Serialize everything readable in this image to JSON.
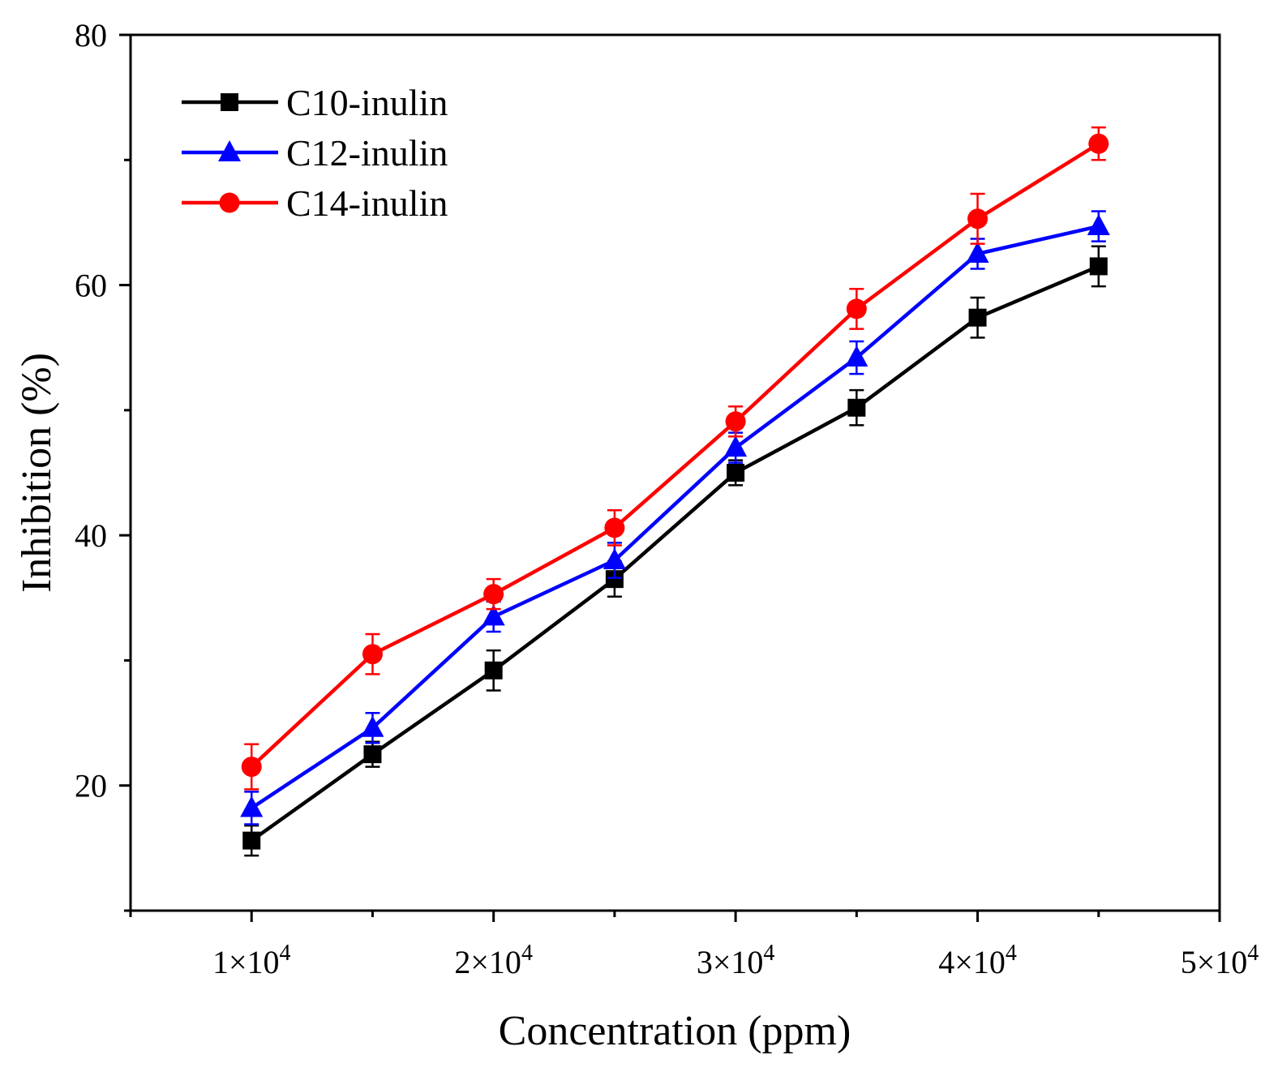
{
  "chart_data": {
    "type": "line",
    "title": "",
    "xlabel": "Concentration (ppm)",
    "ylabel": "Inhibition (%)",
    "xlim": [
      5000,
      50000
    ],
    "ylim": [
      10,
      80
    ],
    "x_ticks": [
      {
        "value": 10000,
        "mantissa": "1",
        "exp": "4"
      },
      {
        "value": 20000,
        "mantissa": "2",
        "exp": "4"
      },
      {
        "value": 30000,
        "mantissa": "3",
        "exp": "4"
      },
      {
        "value": 40000,
        "mantissa": "4",
        "exp": "4"
      },
      {
        "value": 50000,
        "mantissa": "5",
        "exp": "4"
      }
    ],
    "x_minor_ticks": [
      5000,
      15000,
      25000,
      35000,
      45000
    ],
    "y_ticks": [
      {
        "value": 20,
        "label": "20"
      },
      {
        "value": 40,
        "label": "40"
      },
      {
        "value": 60,
        "label": "60"
      },
      {
        "value": 80,
        "label": "80"
      }
    ],
    "y_minor_ticks": [
      10,
      30,
      50,
      70
    ],
    "x": [
      10000,
      15000,
      20000,
      25000,
      30000,
      35000,
      40000,
      45000
    ],
    "legend_position": "top-left",
    "series": [
      {
        "name": "C10-inulin",
        "color": "#000000",
        "marker": "square",
        "values": [
          15.6,
          22.5,
          29.2,
          36.5,
          45.0,
          50.2,
          57.4,
          61.5
        ],
        "errors": [
          1.2,
          1.0,
          1.6,
          1.4,
          1.0,
          1.4,
          1.6,
          1.6
        ]
      },
      {
        "name": "C12-inulin",
        "color": "#0000ff",
        "marker": "triangle",
        "values": [
          18.2,
          24.6,
          33.5,
          38.0,
          47.0,
          54.2,
          62.5,
          64.7
        ],
        "errors": [
          1.3,
          1.2,
          1.2,
          1.4,
          1.2,
          1.3,
          1.2,
          1.2
        ]
      },
      {
        "name": "C14-inulin",
        "color": "#ff0000",
        "marker": "circle",
        "values": [
          21.5,
          30.5,
          35.3,
          40.6,
          49.1,
          58.1,
          65.3,
          71.3
        ],
        "errors": [
          1.8,
          1.6,
          1.2,
          1.4,
          1.2,
          1.6,
          2.0,
          1.3
        ]
      }
    ]
  }
}
